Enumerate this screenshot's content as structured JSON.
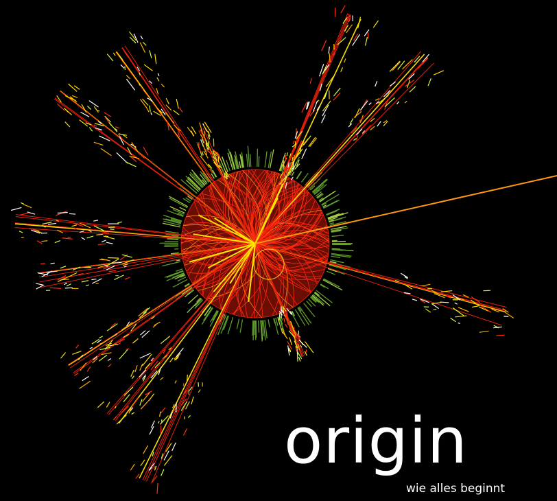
{
  "title": "origin",
  "subtitle": "wie alles beginnt"
}
